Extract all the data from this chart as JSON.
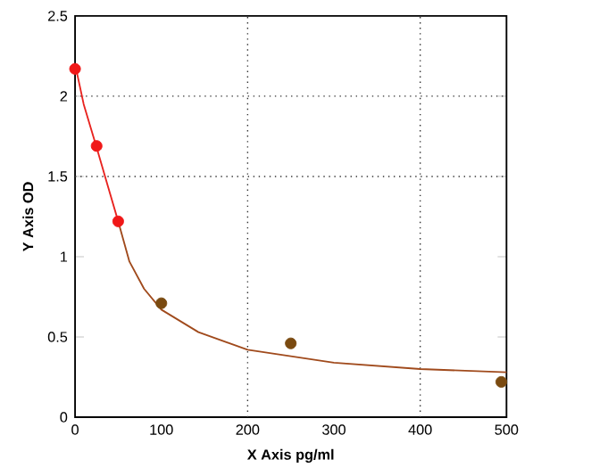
{
  "chart_data": {
    "type": "scatter",
    "xlabel": "X Axis pg/ml",
    "ylabel": "Y Axis OD",
    "xlim": [
      0,
      500
    ],
    "ylim": [
      0,
      2.5
    ],
    "xticks": [
      0,
      100,
      200,
      300,
      400,
      500
    ],
    "yticks": [
      0,
      0.5,
      1,
      1.5,
      2,
      2.5
    ],
    "series": [
      {
        "type": "line",
        "color": "#e8231f",
        "marker": "none",
        "x": [
          0,
          10,
          25,
          38,
          50
        ],
        "values": [
          2.2,
          1.95,
          1.68,
          1.44,
          1.22
        ]
      },
      {
        "type": "line",
        "color": "#a04a1c",
        "marker": "none",
        "x": [
          50,
          63,
          80,
          100,
          143,
          200,
          300,
          400,
          500
        ],
        "values": [
          1.22,
          0.97,
          0.8,
          0.67,
          0.53,
          0.42,
          0.34,
          0.3,
          0.28
        ]
      },
      {
        "color": "#f01818",
        "marker": "circle",
        "x": [
          0,
          25,
          50
        ],
        "values": [
          2.17,
          1.69,
          1.22
        ]
      },
      {
        "color": "#7a4a10",
        "marker": "circle",
        "x": [
          100,
          250,
          494
        ],
        "values": [
          0.71,
          0.46,
          0.22
        ]
      }
    ],
    "ref_lines": [
      {
        "axis": "x",
        "value": 200,
        "line_style": "dotted",
        "color": "#333333"
      },
      {
        "axis": "x",
        "value": 400,
        "line_style": "dotted",
        "color": "#333333"
      },
      {
        "axis": "y",
        "value": 1.5,
        "line_style": "dotted",
        "color": "#333333"
      },
      {
        "axis": "y",
        "value": 2,
        "line_style": "dotted",
        "color": "#333333"
      }
    ]
  }
}
